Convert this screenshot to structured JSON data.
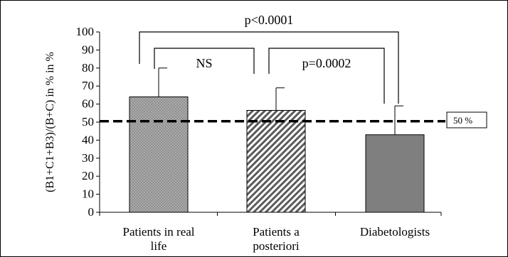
{
  "chart_data": {
    "type": "bar",
    "ylabel": "(B1+C1+B3)/(B+C) in %  in %",
    "ylim": [
      0,
      100
    ],
    "yticks": [
      0,
      10,
      20,
      30,
      40,
      50,
      60,
      70,
      80,
      90,
      100
    ],
    "categories": [
      [
        "Patients in real",
        "life"
      ],
      [
        "Patients a",
        "posteriori"
      ],
      [
        "Diabetologists"
      ]
    ],
    "values": [
      64,
      56.5,
      43
    ],
    "error_upper": [
      80,
      69,
      59
    ],
    "error_lower": [
      null,
      null,
      43
    ],
    "bar_fills": [
      "dots",
      "diagonal-hatch",
      "solid-gray"
    ],
    "reference_line": {
      "value": 50.5,
      "label": "50 %"
    },
    "significance": [
      {
        "from": 0,
        "to": 1,
        "label": "NS"
      },
      {
        "from": 1,
        "to": 2,
        "label": "p=0.0002"
      },
      {
        "from": 0,
        "to": 2,
        "label": "p<0.0001"
      }
    ],
    "grid": false
  }
}
